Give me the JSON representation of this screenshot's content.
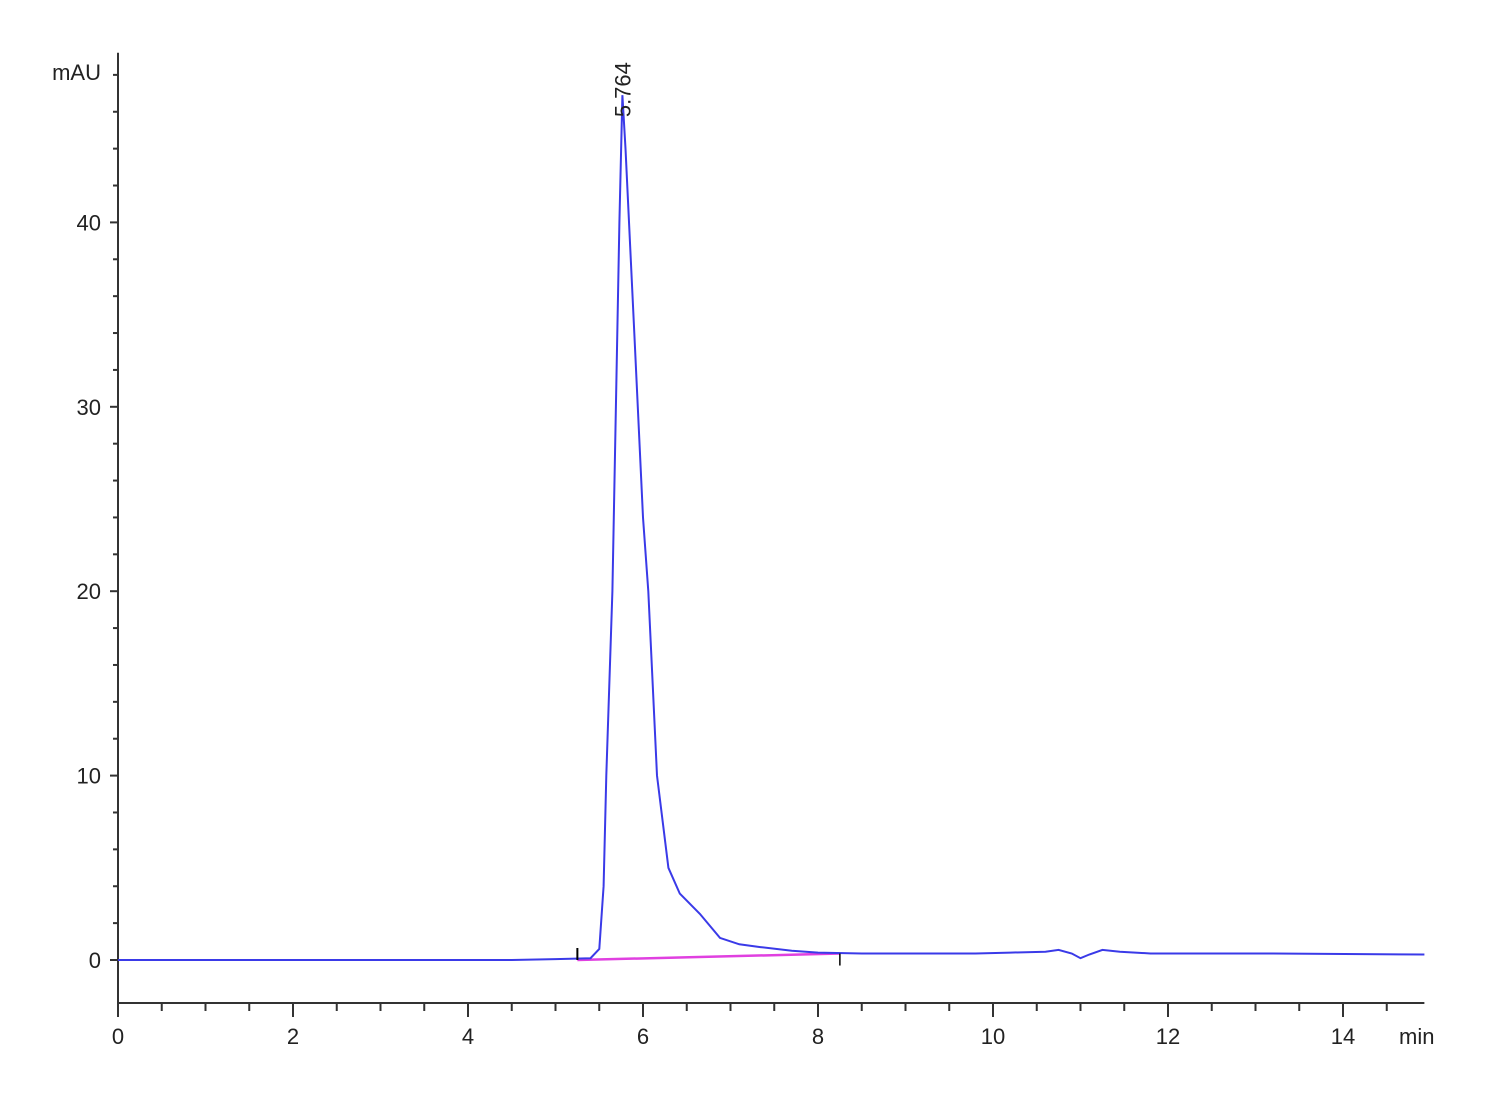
{
  "chart_data": {
    "type": "line",
    "title": "",
    "xlabel": "min",
    "ylabel": "mAU",
    "xlim": [
      0,
      14.93
    ],
    "ylim": [
      -2.3,
      49.2
    ],
    "x_ticks": [
      0,
      2,
      4,
      6,
      8,
      10,
      12,
      14
    ],
    "y_ticks": [
      0,
      10,
      20,
      30,
      40
    ],
    "x_minor_step": 0.5,
    "y_minor_step": 2,
    "grid": false,
    "colors": {
      "trace": "#3a3ae8",
      "baseline": "#e040e0",
      "axis": "#333333"
    },
    "series": [
      {
        "x": [
          0,
          2.5,
          4.5,
          5.0,
          5.4,
          5.5,
          5.55,
          5.58,
          5.65,
          5.69,
          5.73,
          5.764,
          5.8,
          5.9,
          6.0,
          6.06,
          6.16,
          6.29,
          6.42,
          6.65,
          6.88,
          7.1,
          7.34,
          7.7,
          8.0,
          8.5,
          9.8,
          10.2,
          10.6,
          10.75,
          10.9,
          11.0,
          11.1,
          11.25,
          11.45,
          11.8,
          12.0,
          13.2,
          14.93
        ],
        "y": [
          0,
          0,
          0,
          0.05,
          0.1,
          0.6,
          4,
          10,
          20,
          30,
          40,
          46.9,
          44,
          34,
          24,
          20,
          10,
          5,
          3.6,
          2.5,
          1.2,
          0.85,
          0.7,
          0.5,
          0.4,
          0.35,
          0.35,
          0.4,
          0.45,
          0.55,
          0.35,
          0.1,
          0.3,
          0.55,
          0.45,
          0.35,
          0.35,
          0.35,
          0.3
        ]
      }
    ],
    "integration_baseline": {
      "x": [
        5.25,
        8.25
      ],
      "y": [
        0,
        0.35
      ]
    },
    "peak_labels": [
      {
        "x": 5.764,
        "y": 46.9,
        "text": "5.764"
      }
    ]
  }
}
